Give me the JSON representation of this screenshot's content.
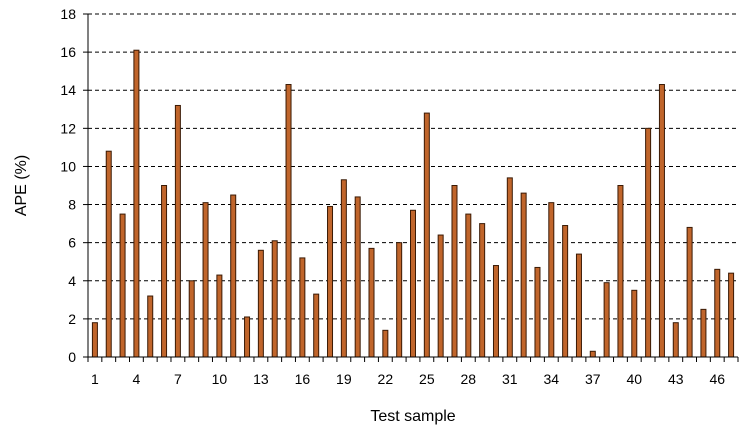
{
  "chart_data": {
    "type": "bar",
    "title": "",
    "xlabel": "Test sample",
    "ylabel": "APE (%)",
    "ylim": [
      0,
      18
    ],
    "yticks": [
      0,
      2,
      4,
      6,
      8,
      10,
      12,
      14,
      16,
      18
    ],
    "grid": "horizontal dashed",
    "bar_color": "#c0652b",
    "categories": [
      1,
      2,
      3,
      4,
      5,
      6,
      7,
      8,
      9,
      10,
      11,
      12,
      13,
      14,
      15,
      16,
      17,
      18,
      19,
      20,
      21,
      22,
      23,
      24,
      25,
      26,
      27,
      28,
      29,
      30,
      31,
      32,
      33,
      34,
      35,
      36,
      37,
      38,
      39,
      40,
      41,
      42,
      43,
      44,
      45,
      46,
      47
    ],
    "x_tick_labels": [
      "1",
      "4",
      "7",
      "10",
      "13",
      "16",
      "19",
      "22",
      "25",
      "28",
      "31",
      "34",
      "37",
      "40",
      "43",
      "46"
    ],
    "values": [
      1.8,
      10.8,
      7.5,
      16.1,
      3.2,
      9.0,
      13.2,
      4.0,
      8.1,
      4.3,
      8.5,
      2.1,
      5.6,
      6.1,
      14.3,
      5.2,
      3.3,
      7.9,
      9.3,
      8.4,
      5.7,
      1.4,
      6.0,
      7.7,
      12.8,
      6.4,
      9.0,
      7.5,
      7.0,
      4.8,
      9.4,
      8.6,
      4.7,
      8.1,
      6.9,
      5.4,
      0.3,
      3.9,
      9.0,
      3.5,
      12.0,
      14.3,
      1.8,
      6.8,
      2.5,
      4.6,
      4.4
    ]
  }
}
